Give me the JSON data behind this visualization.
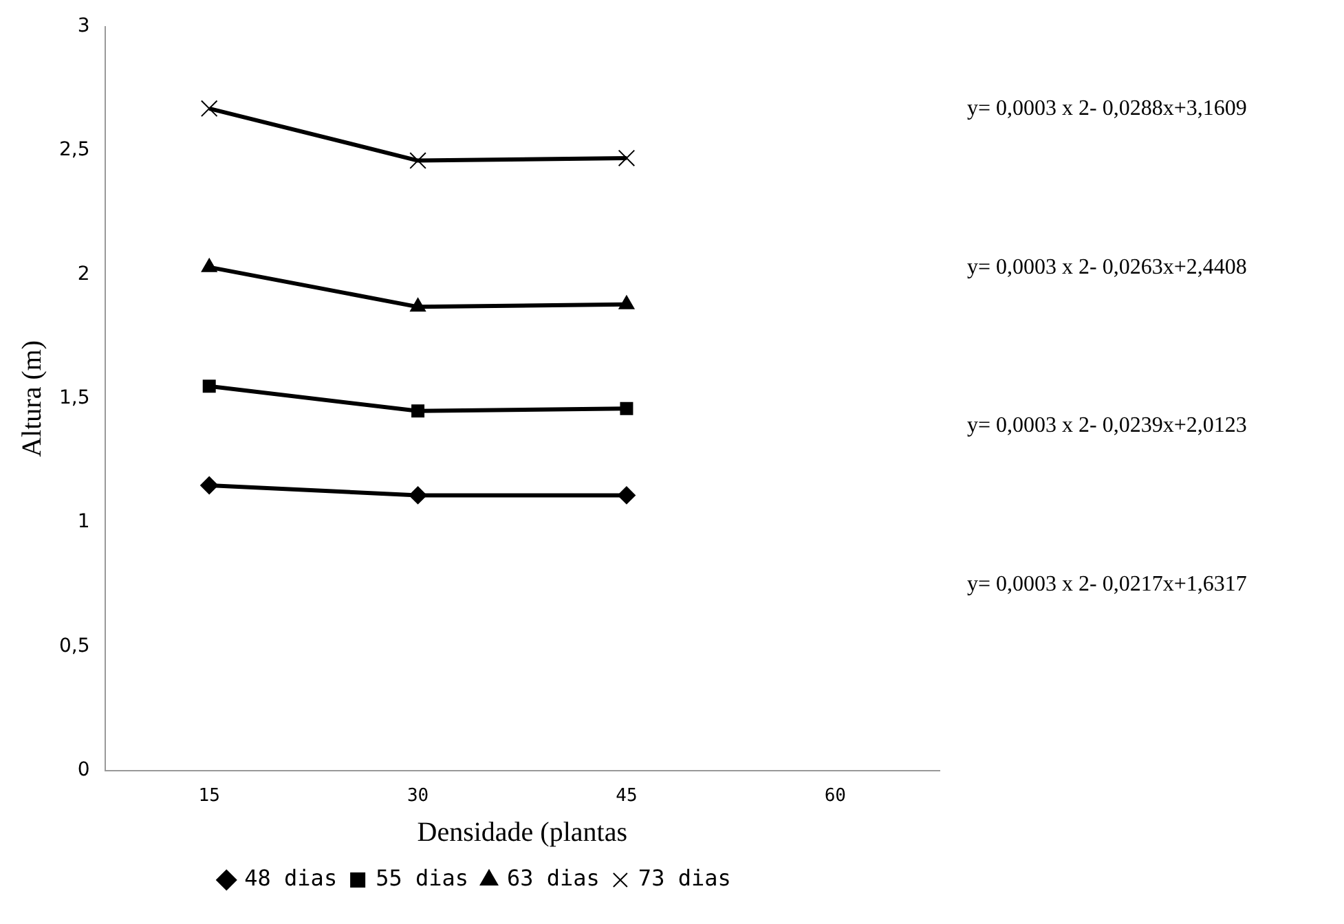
{
  "chart_data": {
    "type": "line",
    "xlabel": "Densidade (plantas",
    "ylabel": "Altura (m)",
    "categories": [
      "15",
      "30",
      "45",
      "60"
    ],
    "series": [
      {
        "name": "48 dias",
        "color": "#000000",
        "marker": "diamond",
        "values": [
          1.15,
          1.11,
          1.11,
          null
        ]
      },
      {
        "name": "55 dias",
        "color": "#000000",
        "marker": "square",
        "values": [
          1.55,
          1.45,
          1.46,
          null
        ]
      },
      {
        "name": "63 dias",
        "color": "#000000",
        "marker": "triangle",
        "values": [
          2.03,
          1.87,
          1.88,
          null
        ]
      },
      {
        "name": "73 dias",
        "color": "#000000",
        "marker": "cross",
        "values": [
          2.67,
          2.46,
          2.47,
          null
        ]
      }
    ],
    "ylim": [
      0,
      3
    ],
    "yticks": [
      0,
      {
        "value": 0.5,
        "label": "0,5"
      },
      1,
      {
        "value": 1.5,
        "label": "1,5"
      },
      2,
      {
        "value": 2.5,
        "label": "2,5"
      },
      3
    ],
    "grid": false,
    "legend": "bottom",
    "line_style": "solid",
    "annotations": [
      "y= 0,0003 x 2- 0,0288x+3,1609",
      "y= 0,0003 x 2- 0,0263x+2,4408",
      "y= 0,0003 x 2- 0,0239x+2,0123",
      "y= 0,0003 x 2- 0,0217x+1,6317"
    ]
  }
}
